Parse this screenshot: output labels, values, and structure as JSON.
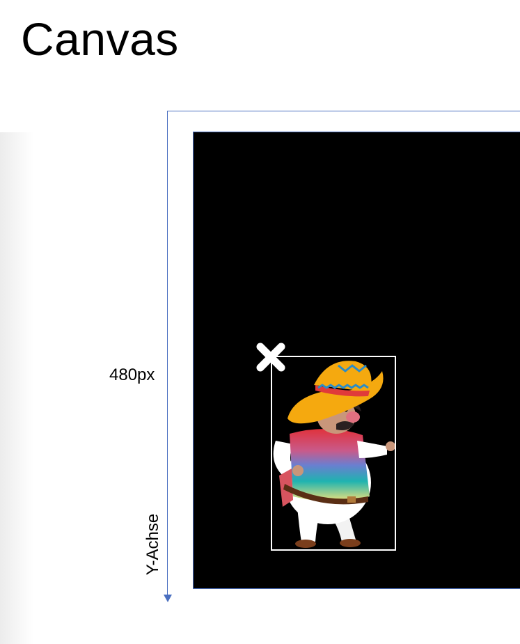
{
  "slide": {
    "title": "Canvas"
  },
  "axis": {
    "height_label": "480px",
    "y_label": "Y-Achse",
    "line_color": "#4a6fc0"
  },
  "stage": {
    "background": "#000000"
  },
  "sprite": {
    "icon": "mariachi-character-sprite",
    "origin_marker_icon": "x-cross-icon",
    "frame_color": "#ffffff"
  }
}
